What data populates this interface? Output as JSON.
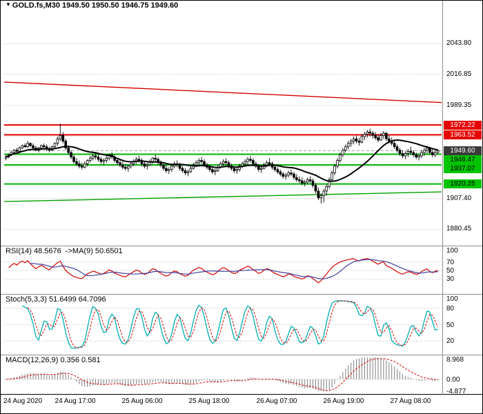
{
  "header": {
    "dropdown_icon": "▼",
    "title": "GOLD.fs,M30 1949.50 1950.50 1946.75 1949.60"
  },
  "colors": {
    "background": "#ffffff",
    "grid": "#b9b9b9",
    "candle_outline": "#000000",
    "candle_up_fill": "#ffffff",
    "candle_down_fill": "#000000",
    "ma_line": "#000000",
    "resistance_line": "#e60000",
    "support_line": "#00b200",
    "trend_red": "#d40000",
    "trend_green": "#00a000",
    "bid_box_bg": "#3a3a3a",
    "price_box_red_bg": "#e60000",
    "price_box_green_bg": "#00c400",
    "rsi_line": "#d40000",
    "rsi_ma_line": "#4040a0",
    "stoch_k_line": "#00b0b0",
    "stoch_d_line": "#d40000",
    "macd_hist": "#7d7d7d",
    "macd_signal": "#d40000",
    "separator": "#8c8c8c"
  },
  "chart_data": {
    "type": "candlestick",
    "symbol": "GOLD.fs",
    "timeframe": "M30",
    "last_ohlc": {
      "open": "1949.50",
      "high": "1950.50",
      "low": "1946.75",
      "close": "1949.60"
    },
    "y_range": [
      1869,
      2078
    ],
    "y_axis_ticks": [
      {
        "text": "2043.80",
        "price": 2043.8
      },
      {
        "text": "2016.85",
        "price": 2016.85
      },
      {
        "text": "1989.35",
        "price": 1989.35
      },
      {
        "text": "1907.40",
        "price": 1907.4
      },
      {
        "text": "1880.45",
        "price": 1880.45
      }
    ],
    "grid_prices": [
      2043.8,
      2016.85,
      1989.35,
      1962.4,
      1935.45,
      1907.4,
      1880.45
    ],
    "time_labels": [
      "24 Aug 2020",
      "24 Aug 17:00",
      "25 Aug 06:00",
      "25 Aug 18:00",
      "26 Aug 07:00",
      "26 Aug 19:00",
      "27 Aug 08:00"
    ],
    "hlines": [
      {
        "price": 1972.22,
        "label": "1972.22",
        "kind": "resistance"
      },
      {
        "price": 1963.52,
        "label": "1963.52",
        "kind": "resistance"
      },
      {
        "price": 1946.47,
        "label": "1946.47",
        "kind": "support"
      },
      {
        "price": 1937.07,
        "label": "1937.07",
        "kind": "support"
      },
      {
        "price": 1920.25,
        "label": "1920.25",
        "kind": "support"
      }
    ],
    "bid_line": {
      "price": 1949.6,
      "label": "1949.60"
    },
    "trendlines": [
      {
        "kind": "descending-resistance",
        "p1": 2010.0,
        "p2": 1992.0
      },
      {
        "kind": "ascending-support",
        "p1": 1904.8,
        "p2": 1913.3
      }
    ],
    "ma_period": 21,
    "candles_hlc": [
      [
        1946,
        1941,
        1944
      ],
      [
        1947,
        1943,
        1946
      ],
      [
        1949,
        1945,
        1948
      ],
      [
        1951,
        1947,
        1950
      ],
      [
        1952,
        1948,
        1949
      ],
      [
        1953,
        1948,
        1952
      ],
      [
        1955,
        1951,
        1954
      ],
      [
        1956,
        1952,
        1953
      ],
      [
        1958,
        1952,
        1956
      ],
      [
        1957,
        1953,
        1954
      ],
      [
        1956,
        1951,
        1952
      ],
      [
        1954,
        1949,
        1950
      ],
      [
        1953,
        1948,
        1952
      ],
      [
        1955,
        1950,
        1954
      ],
      [
        1956,
        1951,
        1953
      ],
      [
        1955,
        1949,
        1951
      ],
      [
        1953,
        1948,
        1950
      ],
      [
        1954,
        1949,
        1953
      ],
      [
        1957,
        1952,
        1956
      ],
      [
        1962,
        1954,
        1960
      ],
      [
        1973.5,
        1958,
        1963
      ],
      [
        1966,
        1956,
        1958
      ],
      [
        1960,
        1950,
        1952
      ],
      [
        1954,
        1946,
        1948
      ],
      [
        1950,
        1942,
        1944
      ],
      [
        1946,
        1938,
        1940
      ],
      [
        1943,
        1936,
        1938
      ],
      [
        1941,
        1934,
        1936
      ],
      [
        1939,
        1933,
        1935
      ],
      [
        1940,
        1934,
        1938
      ],
      [
        1942,
        1936,
        1941
      ],
      [
        1945,
        1939,
        1943
      ],
      [
        1947,
        1941,
        1945
      ],
      [
        1948,
        1942,
        1944
      ],
      [
        1946,
        1940,
        1942
      ],
      [
        1944,
        1938,
        1940
      ],
      [
        1943,
        1937,
        1941
      ],
      [
        1945,
        1939,
        1943
      ],
      [
        1947,
        1941,
        1946
      ],
      [
        1948,
        1942,
        1944
      ],
      [
        1946,
        1939,
        1941
      ],
      [
        1943,
        1937,
        1939
      ],
      [
        1941,
        1935,
        1937
      ],
      [
        1940,
        1933,
        1935
      ],
      [
        1938,
        1932,
        1934
      ],
      [
        1937,
        1931,
        1936
      ],
      [
        1940,
        1934,
        1938
      ],
      [
        1942,
        1936,
        1940
      ],
      [
        1944,
        1938,
        1942
      ],
      [
        1945,
        1939,
        1941
      ],
      [
        1943,
        1936,
        1938
      ],
      [
        1940,
        1934,
        1936
      ],
      [
        1939,
        1933,
        1937
      ],
      [
        1942,
        1936,
        1940
      ],
      [
        1944,
        1938,
        1943
      ],
      [
        1946,
        1940,
        1942
      ],
      [
        1944,
        1937,
        1939
      ],
      [
        1941,
        1935,
        1937
      ],
      [
        1939,
        1932,
        1934
      ],
      [
        1937,
        1930,
        1932
      ],
      [
        1935,
        1929,
        1933
      ],
      [
        1938,
        1931,
        1936
      ],
      [
        1940,
        1934,
        1938
      ],
      [
        1941,
        1935,
        1937
      ],
      [
        1939,
        1932,
        1934
      ],
      [
        1936,
        1930,
        1932
      ],
      [
        1934,
        1928,
        1930
      ],
      [
        1933,
        1927,
        1931
      ],
      [
        1936,
        1930,
        1934
      ],
      [
        1939,
        1933,
        1937
      ],
      [
        1941,
        1935,
        1939
      ],
      [
        1943,
        1936,
        1941
      ],
      [
        1944,
        1938,
        1940
      ],
      [
        1942,
        1935,
        1937
      ],
      [
        1939,
        1933,
        1935
      ],
      [
        1937,
        1931,
        1933
      ],
      [
        1936,
        1929,
        1931
      ],
      [
        1934,
        1928,
        1932
      ],
      [
        1937,
        1931,
        1935
      ],
      [
        1940,
        1934,
        1938
      ],
      [
        1942,
        1936,
        1940
      ],
      [
        1943,
        1937,
        1939
      ],
      [
        1941,
        1934,
        1936
      ],
      [
        1938,
        1932,
        1934
      ],
      [
        1936,
        1930,
        1932
      ],
      [
        1935,
        1929,
        1933
      ],
      [
        1938,
        1931,
        1936
      ],
      [
        1940,
        1934,
        1938
      ],
      [
        1942,
        1936,
        1940
      ],
      [
        1944,
        1937,
        1942
      ],
      [
        1945,
        1939,
        1941
      ],
      [
        1943,
        1936,
        1938
      ],
      [
        1940,
        1934,
        1936
      ],
      [
        1938,
        1931,
        1933
      ],
      [
        1936,
        1930,
        1934
      ],
      [
        1939,
        1933,
        1937
      ],
      [
        1941,
        1935,
        1939
      ],
      [
        1943,
        1936,
        1938
      ],
      [
        1940,
        1933,
        1935
      ],
      [
        1937,
        1931,
        1933
      ],
      [
        1935,
        1929,
        1931
      ],
      [
        1933,
        1927,
        1929
      ],
      [
        1931,
        1925,
        1927
      ],
      [
        1930,
        1924,
        1928
      ],
      [
        1932,
        1926,
        1930
      ],
      [
        1933,
        1927,
        1929
      ],
      [
        1931,
        1924,
        1926
      ],
      [
        1929,
        1922,
        1924
      ],
      [
        1927,
        1921,
        1923
      ],
      [
        1926,
        1919,
        1921
      ],
      [
        1924,
        1918,
        1922
      ],
      [
        1926,
        1920,
        1924
      ],
      [
        1927,
        1921,
        1923
      ],
      [
        1925,
        1917,
        1919
      ],
      [
        1921,
        1912,
        1914
      ],
      [
        1917,
        1906,
        1908
      ],
      [
        1912,
        1903,
        1910
      ],
      [
        1916,
        1904,
        1914
      ],
      [
        1920,
        1910,
        1918
      ],
      [
        1926,
        1916,
        1924
      ],
      [
        1932,
        1922,
        1930
      ],
      [
        1938,
        1928,
        1936
      ],
      [
        1943,
        1934,
        1941
      ],
      [
        1948,
        1939,
        1946
      ],
      [
        1952,
        1944,
        1950
      ],
      [
        1955,
        1948,
        1953
      ],
      [
        1958,
        1951,
        1956
      ],
      [
        1960,
        1953,
        1958
      ],
      [
        1962,
        1955,
        1960
      ],
      [
        1963,
        1956,
        1958
      ],
      [
        1961,
        1954,
        1957
      ],
      [
        1964,
        1956,
        1962
      ],
      [
        1966,
        1959,
        1964
      ],
      [
        1968,
        1961,
        1966
      ],
      [
        1969,
        1962,
        1965
      ],
      [
        1967,
        1960,
        1963
      ],
      [
        1966,
        1959,
        1961
      ],
      [
        1964,
        1957,
        1959
      ],
      [
        1965,
        1958,
        1963
      ],
      [
        1967,
        1960,
        1965
      ],
      [
        1966,
        1958,
        1960
      ],
      [
        1963,
        1956,
        1958
      ],
      [
        1961,
        1954,
        1956
      ],
      [
        1958,
        1951,
        1953
      ],
      [
        1955,
        1948,
        1950
      ],
      [
        1952,
        1945,
        1947
      ],
      [
        1950,
        1943,
        1945
      ],
      [
        1949,
        1942,
        1947
      ],
      [
        1951,
        1944,
        1949
      ],
      [
        1953,
        1946,
        1948
      ],
      [
        1950,
        1944,
        1946
      ],
      [
        1948,
        1942,
        1944
      ],
      [
        1947,
        1941,
        1945
      ],
      [
        1950,
        1943,
        1948
      ],
      [
        1952,
        1945,
        1950
      ],
      [
        1954,
        1947,
        1952
      ],
      [
        1953,
        1946,
        1948
      ],
      [
        1951,
        1944,
        1946
      ],
      [
        1950,
        1944,
        1948
      ],
      [
        1950.5,
        1946.75,
        1949.6
      ]
    ]
  },
  "indicators": {
    "rsi": {
      "label": "RSI(14) 48.5676  ->MA(9) 50.6501",
      "period": 14,
      "ma_period": 9,
      "axis": [
        {
          "text": "100",
          "v": 100
        },
        {
          "text": "70",
          "v": 70
        },
        {
          "text": "50",
          "v": 50
        },
        {
          "text": "30",
          "v": 30
        }
      ],
      "grid": [
        70,
        50,
        30
      ]
    },
    "stoch": {
      "label": "Stoch(5,3,3) 51.6499 64.7096",
      "k": 5,
      "slowing": 3,
      "d": 3,
      "axis": [
        {
          "text": "100",
          "v": 100
        },
        {
          "text": "80",
          "v": 80
        },
        {
          "text": "50",
          "v": 50
        },
        {
          "text": "20",
          "v": 20
        }
      ],
      "grid": [
        80,
        50,
        20
      ]
    },
    "macd": {
      "label": "MACD(12,26,9) 0.356 0.581",
      "fast": 12,
      "slow": 26,
      "signal": 9,
      "range": [
        -4.877,
        8.968
      ],
      "axis": [
        {
          "text": "8.968",
          "v": 8.968
        },
        {
          "text": "0.00",
          "v": 0
        },
        {
          "text": "-4.877",
          "v": -4.877
        }
      ],
      "grid": [
        0
      ]
    }
  }
}
